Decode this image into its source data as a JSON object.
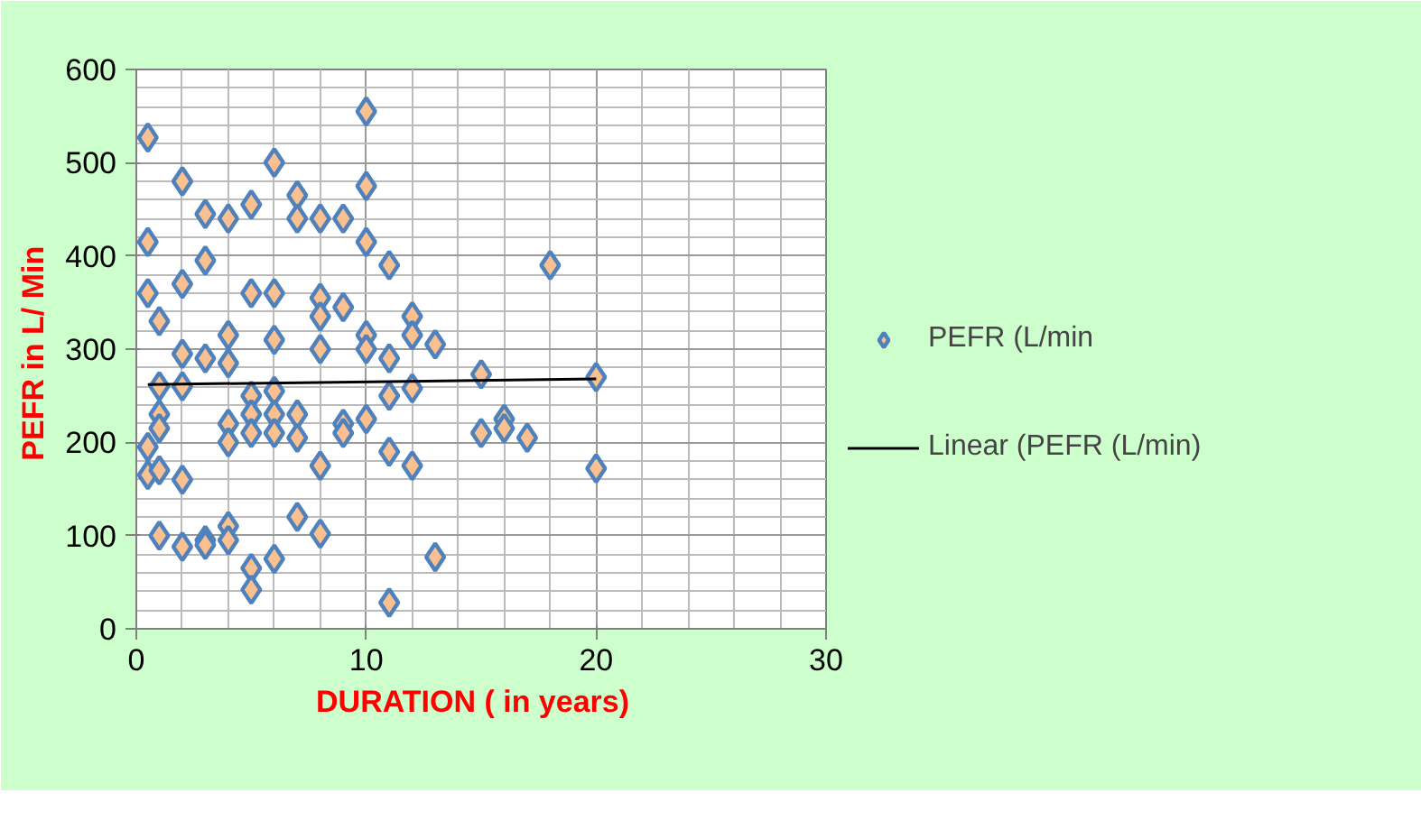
{
  "chart_data": {
    "type": "scatter",
    "xlabel": "DURATION ( in   years)",
    "ylabel": "PEFR in  L/ Min",
    "xlim": [
      0,
      30
    ],
    "xticks": [
      0,
      10,
      20,
      30
    ],
    "ylim": [
      0,
      600
    ],
    "yticks": [
      0,
      100,
      200,
      300,
      400,
      500,
      600
    ],
    "grid": true,
    "legend": "right",
    "marker": "diamond",
    "series": [
      {
        "name": "PEFR (L/min",
        "color": "#fac090",
        "x": [
          0.5,
          0.5,
          0.5,
          0.5,
          0.5,
          1,
          1,
          1,
          1,
          1,
          1,
          2,
          2,
          2,
          2,
          2,
          2,
          3,
          3,
          3,
          3,
          3,
          4,
          4,
          4,
          4,
          4,
          4,
          4,
          5,
          5,
          5,
          5,
          5,
          5,
          5,
          6,
          6,
          6,
          6,
          6,
          6,
          6,
          7,
          7,
          7,
          7,
          7,
          8,
          8,
          8,
          8,
          8,
          8,
          9,
          9,
          9,
          9,
          10,
          10,
          10,
          10,
          10,
          10,
          11,
          11,
          11,
          11,
          11,
          12,
          12,
          12,
          12,
          13,
          13,
          15,
          15,
          16,
          16,
          17,
          18,
          20,
          20
        ],
        "values": [
          527,
          415,
          360,
          195,
          165,
          330,
          260,
          230,
          215,
          170,
          100,
          480,
          370,
          295,
          260,
          160,
          88,
          445,
          395,
          290,
          95,
          90,
          440,
          315,
          285,
          220,
          200,
          110,
          95,
          455,
          360,
          250,
          230,
          210,
          65,
          42,
          500,
          360,
          310,
          255,
          230,
          210,
          75,
          465,
          440,
          230,
          205,
          120,
          440,
          355,
          335,
          300,
          175,
          102,
          440,
          345,
          220,
          210,
          555,
          475,
          415,
          315,
          300,
          225,
          390,
          290,
          250,
          190,
          28,
          335,
          315,
          258,
          175,
          305,
          77,
          273,
          210,
          225,
          215,
          205,
          390,
          270,
          172
        ]
      },
      {
        "name": "Linear (PEFR (L/min)",
        "type": "line",
        "marker": "none",
        "color": "#000000",
        "x": [
          0.5,
          20
        ],
        "values": [
          262,
          268
        ]
      }
    ]
  }
}
